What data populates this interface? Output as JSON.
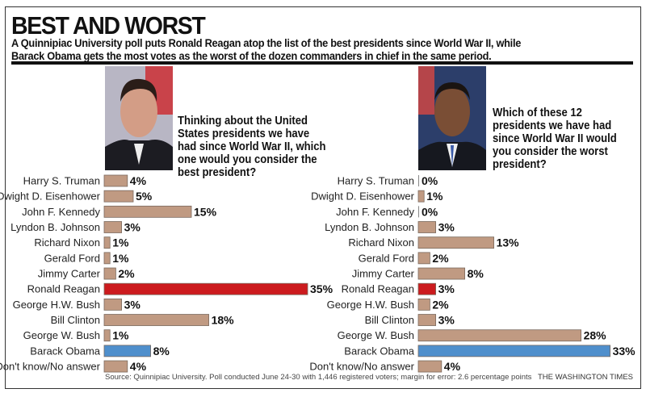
{
  "header": {
    "title": "BEST AND WORST",
    "subtitle_line1": "A Quinnipiac University poll puts Ronald Reagan atop the list of the best presidents since World War II, while",
    "subtitle_line2": "Barack Obama gets the most votes as the worst of the dozen commanders in chief in the same period."
  },
  "colors": {
    "default": "#c09a82",
    "reagan": "#cc1b1e",
    "obama": "#4f8fcc"
  },
  "chart_data": [
    {
      "type": "bar",
      "orientation": "horizontal",
      "title": "Thinking about the United States presidents we have had since World War II, which one would you consider the best president?",
      "title_lines": [
        "Thinking about the United",
        "States presidents we have",
        "had since World War II, which",
        "one would you consider the",
        "best president?"
      ],
      "categories": [
        "Harry S. Truman",
        "Dwight D. Eisenhower",
        "John F. Kennedy",
        "Lyndon B. Johnson",
        "Richard Nixon",
        "Gerald Ford",
        "Jimmy Carter",
        "Ronald Reagan",
        "George H.W. Bush",
        "Bill Clinton",
        "George W. Bush",
        "Barack Obama",
        "Don't know/No answer"
      ],
      "values": [
        4,
        5,
        15,
        3,
        1,
        1,
        2,
        35,
        3,
        18,
        1,
        8,
        4
      ],
      "unit": "%",
      "xlim": [
        0,
        35
      ]
    },
    {
      "type": "bar",
      "orientation": "horizontal",
      "title": "Which of these 12 presidents we have had since World War II would you consider the worst president?",
      "title_lines": [
        "Which of these 12",
        "presidents we have had",
        "since World War II would",
        "you consider the worst",
        "president?"
      ],
      "categories": [
        "Harry S. Truman",
        "Dwight D. Eisenhower",
        "John F. Kennedy",
        "Lyndon B. Johnson",
        "Richard Nixon",
        "Gerald Ford",
        "Jimmy Carter",
        "Ronald Reagan",
        "George H.W. Bush",
        "Bill Clinton",
        "George W. Bush",
        "Barack Obama",
        "Don't know/No answer"
      ],
      "values": [
        0,
        1,
        0,
        3,
        13,
        2,
        8,
        3,
        2,
        3,
        28,
        33,
        4
      ],
      "unit": "%",
      "xlim": [
        0,
        33
      ]
    }
  ],
  "footer": {
    "source": "Source: Quinnipiac University. Poll conducted June 24-30 with 1,446 registered voters; margin for error: 2.6 percentage points",
    "credit": "THE WASHINGTON TIMES"
  }
}
